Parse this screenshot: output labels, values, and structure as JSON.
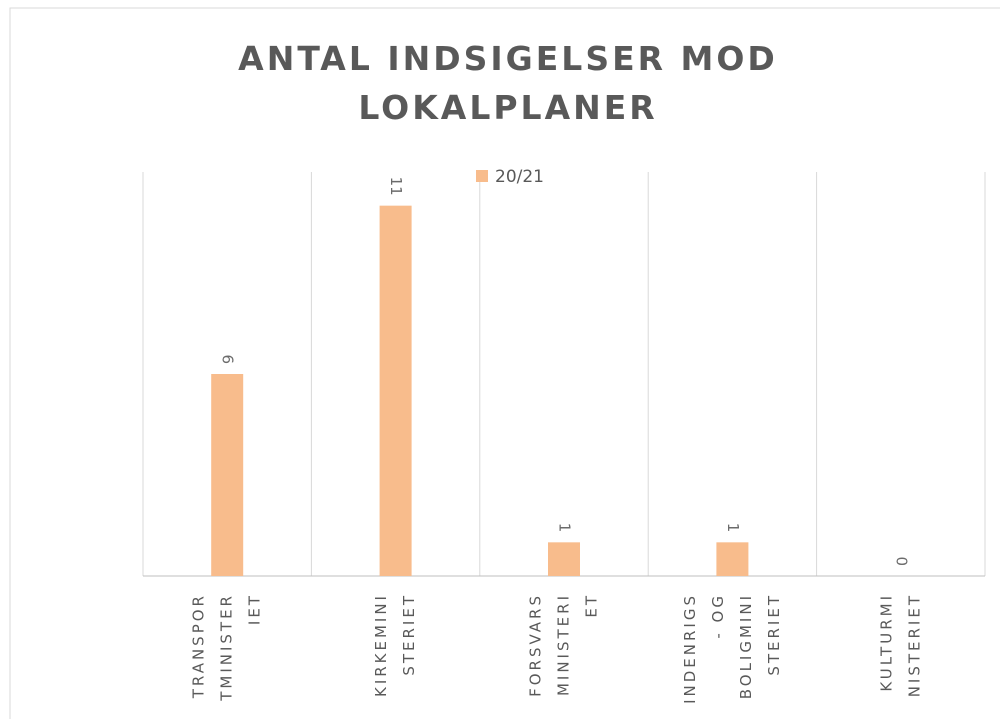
{
  "chart_data": {
    "type": "bar",
    "title": [
      "ANTAL INDSIGELSER MOD",
      "LOKALPLANER"
    ],
    "categories": [
      [
        "TRANSPOR",
        "TMINISTER",
        "IET"
      ],
      [
        "KIRKEMINI",
        "STERIET"
      ],
      [
        "FORSVARS",
        "MINISTERI",
        "ET"
      ],
      [
        "INDENRIGS",
        "- OG",
        "BOLIGMINI",
        "STERIET"
      ],
      [
        "KULTURMI",
        "NISTERIET"
      ]
    ],
    "series": [
      {
        "name": "20/21",
        "color": "#f8bc8c",
        "values": [
          6,
          11,
          1,
          1,
          0
        ]
      }
    ],
    "ylim": [
      0,
      12
    ],
    "legend": "top",
    "grid": true
  }
}
